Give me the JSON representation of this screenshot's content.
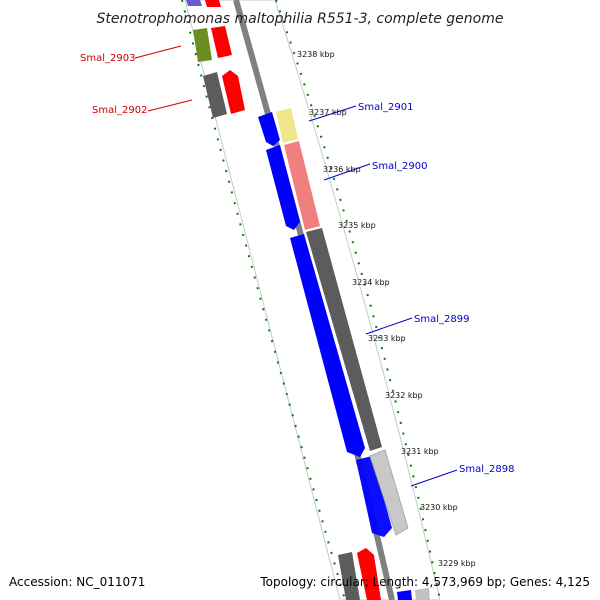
{
  "title": "Stenotrophomonas maltophilia R551-3, complete genome",
  "accession": "Accession: NC_011071",
  "summary": "Topology: circular; Length: 4,573,969 bp; Genes: 4,125",
  "colors": {
    "blue": "#0000ff",
    "red": "#ff0000",
    "darkgray": "#5c5c5c",
    "lightgray": "#c0c0c0",
    "salmon": "#f08080",
    "khaki": "#f0e68c",
    "olive": "#6b8e23",
    "purple": "#6a5acd",
    "tick_green": "#008000",
    "blue_label": "#0000cc",
    "red_label": "#cc0000"
  },
  "ticks": [
    {
      "label": "3229 kbp"
    },
    {
      "label": "3230 kbp"
    },
    {
      "label": "3231 kbp"
    },
    {
      "label": "3232 kbp"
    },
    {
      "label": "3233 kbp"
    },
    {
      "label": "3234 kbp"
    },
    {
      "label": "3235 kbp"
    },
    {
      "label": "3236 kbp"
    },
    {
      "label": "3237 kbp"
    },
    {
      "label": "3238 kbp"
    }
  ],
  "genes": [
    {
      "name": "Smal_2898",
      "color": "blue"
    },
    {
      "name": "Smal_2899",
      "color": "blue"
    },
    {
      "name": "Smal_2900",
      "color": "blue"
    },
    {
      "name": "Smal_2901",
      "color": "blue"
    },
    {
      "name": "Smal_2902",
      "color": "red"
    },
    {
      "name": "Smal_2903",
      "color": "red"
    }
  ]
}
